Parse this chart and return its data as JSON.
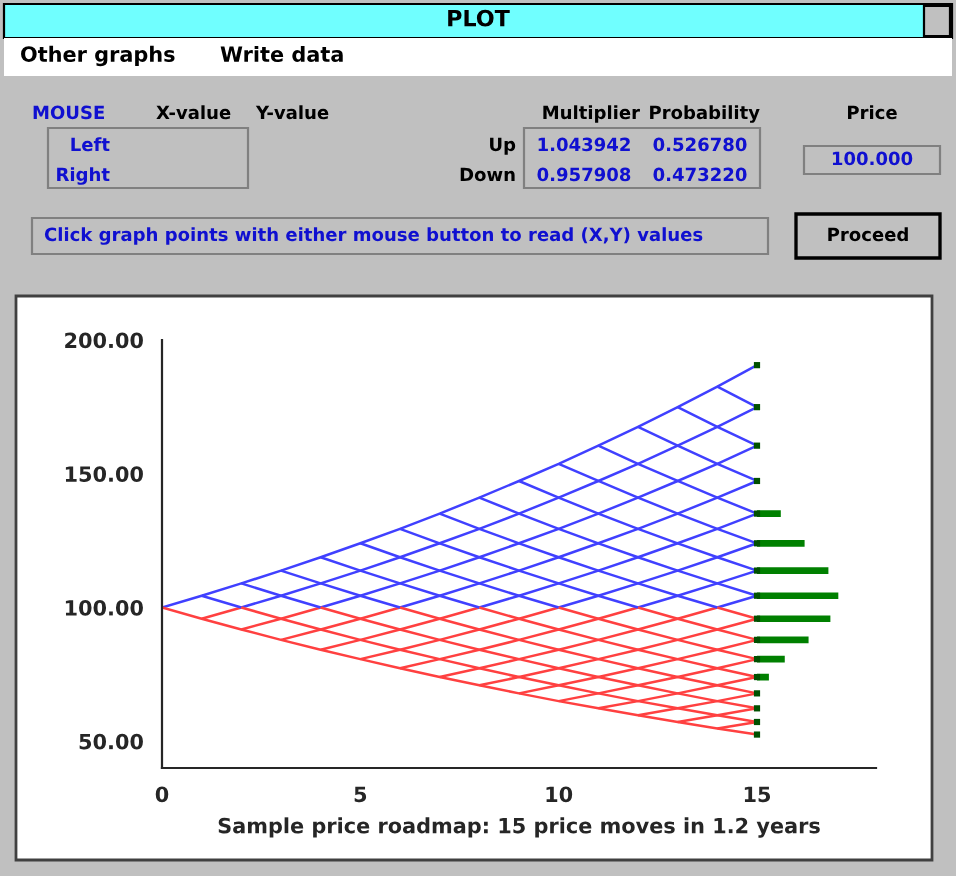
{
  "chart_data": {
    "type": "line",
    "title": "PLOT",
    "xlabel": "Sample price roadmap: 15 price moves in 1.2 years",
    "annotations": [
      "Other graphs",
      "Write data",
      "MOUSE",
      "X-value",
      "Y-value",
      "Left",
      "Right",
      "Multiplier",
      "Probability",
      "Up",
      "Down",
      "1.043942",
      "0.526780",
      "0.957908",
      "0.473220",
      "Price",
      "100.000",
      "Click graph points with either mouse button to read (X,Y) values",
      "Proceed"
    ],
    "xlim": [
      0,
      18
    ],
    "xticks": [
      0,
      5,
      10,
      15
    ],
    "ylim": [
      40,
      200
    ],
    "yticks": [
      {
        "value": 50,
        "label": "50.00"
      },
      {
        "value": 100,
        "label": "100.00"
      },
      {
        "value": 150,
        "label": "150.00"
      },
      {
        "value": 200,
        "label": "200.00"
      }
    ],
    "grid": false,
    "legend": false,
    "series": [
      {
        "color": "#4040ff",
        "x": [
          0,
          1,
          2,
          3,
          4,
          5,
          6,
          7,
          8,
          9,
          10,
          11,
          12,
          13,
          14,
          15
        ],
        "values": [
          100.0,
          104.4,
          109.0,
          113.8,
          118.8,
          124.0,
          129.4,
          135.1,
          141.1,
          147.3,
          153.7,
          160.5,
          167.5,
          174.9,
          182.6,
          190.6
        ]
      },
      {
        "color": "#ff4040",
        "x": [
          1,
          2
        ],
        "values": [
          95.8,
          100.0
        ]
      },
      {
        "color": "#4040ff",
        "x": [
          2,
          3,
          4,
          5,
          6,
          7,
          8,
          9,
          10,
          11,
          12,
          13,
          14,
          15
        ],
        "values": [
          100.0,
          104.4,
          109.0,
          113.8,
          118.8,
          124.0,
          129.4,
          135.1,
          141.1,
          147.3,
          153.7,
          160.5,
          167.5,
          174.9
        ]
      },
      {
        "color": "#ff4040",
        "x": [
          2,
          3,
          4
        ],
        "values": [
          91.8,
          95.8,
          100.0
        ]
      },
      {
        "color": "#4040ff",
        "x": [
          4,
          5,
          6,
          7,
          8,
          9,
          10,
          11,
          12,
          13,
          14,
          15
        ],
        "values": [
          100.0,
          104.4,
          109.0,
          113.8,
          118.8,
          124.0,
          129.4,
          135.1,
          141.1,
          147.3,
          153.7,
          160.5
        ]
      },
      {
        "color": "#ff4040",
        "x": [
          3,
          4,
          5,
          6
        ],
        "values": [
          87.9,
          91.8,
          95.8,
          100.0
        ]
      },
      {
        "color": "#4040ff",
        "x": [
          6,
          7,
          8,
          9,
          10,
          11,
          12,
          13,
          14,
          15
        ],
        "values": [
          100.0,
          104.4,
          109.0,
          113.8,
          118.8,
          124.0,
          129.4,
          135.1,
          141.1,
          147.3
        ]
      },
      {
        "color": "#ff4040",
        "x": [
          4,
          5,
          6,
          7,
          8
        ],
        "values": [
          84.2,
          87.9,
          91.8,
          95.8,
          100.0
        ]
      },
      {
        "color": "#4040ff",
        "x": [
          8,
          9,
          10,
          11,
          12,
          13,
          14,
          15
        ],
        "values": [
          100.0,
          104.4,
          109.0,
          113.8,
          118.8,
          124.0,
          129.4,
          135.1
        ]
      },
      {
        "color": "#ff4040",
        "x": [
          5,
          6,
          7,
          8,
          9,
          10
        ],
        "values": [
          80.7,
          84.2,
          87.9,
          91.8,
          95.8,
          100.0
        ]
      },
      {
        "color": "#4040ff",
        "x": [
          10,
          11,
          12,
          13,
          14,
          15
        ],
        "values": [
          100.0,
          104.4,
          109.0,
          113.8,
          118.8,
          124.0
        ]
      },
      {
        "color": "#ff4040",
        "x": [
          6,
          7,
          8,
          9,
          10,
          11,
          12
        ],
        "values": [
          77.3,
          80.7,
          84.2,
          87.9,
          91.8,
          95.8,
          100.0
        ]
      },
      {
        "color": "#4040ff",
        "x": [
          12,
          13,
          14,
          15
        ],
        "values": [
          100.0,
          104.4,
          109.0,
          113.8
        ]
      },
      {
        "color": "#ff4040",
        "x": [
          7,
          8,
          9,
          10,
          11,
          12,
          13,
          14
        ],
        "values": [
          74.0,
          77.3,
          80.7,
          84.2,
          87.9,
          91.8,
          95.8,
          100.0
        ]
      },
      {
        "color": "#4040ff",
        "x": [
          14,
          15
        ],
        "values": [
          100.0,
          104.4
        ]
      },
      {
        "color": "#ff4040",
        "x": [
          8,
          9,
          10,
          11,
          12,
          13,
          14,
          15
        ],
        "values": [
          70.9,
          74.0,
          77.3,
          80.7,
          84.2,
          87.9,
          91.8,
          95.8
        ]
      },
      {
        "color": "#ff4040",
        "x": [
          9,
          10,
          11,
          12,
          13,
          14,
          15
        ],
        "values": [
          67.9,
          70.9,
          74.0,
          77.3,
          80.7,
          84.2,
          87.9
        ]
      },
      {
        "color": "#ff4040",
        "x": [
          10,
          11,
          12,
          13,
          14,
          15
        ],
        "values": [
          65.0,
          67.9,
          70.9,
          74.0,
          77.3,
          80.7
        ]
      },
      {
        "color": "#ff4040",
        "x": [
          11,
          12,
          13,
          14,
          15
        ],
        "values": [
          62.3,
          65.0,
          67.9,
          70.9,
          74.0
        ]
      },
      {
        "color": "#ff4040",
        "x": [
          12,
          13,
          14,
          15
        ],
        "values": [
          59.7,
          62.3,
          65.0,
          67.9
        ]
      },
      {
        "color": "#ff4040",
        "x": [
          13,
          14,
          15
        ],
        "values": [
          57.2,
          59.7,
          62.3
        ]
      },
      {
        "color": "#ff4040",
        "x": [
          14,
          15
        ],
        "values": [
          54.8,
          57.2
        ]
      },
      {
        "color": "#ff4040",
        "x": [
          0,
          1,
          2,
          3,
          4,
          5,
          6,
          7,
          8,
          9,
          10,
          11,
          12,
          13,
          14,
          15
        ],
        "values": [
          100.0,
          95.8,
          91.8,
          87.9,
          84.2,
          80.7,
          77.3,
          74.0,
          70.9,
          67.9,
          65.0,
          62.3,
          59.7,
          57.2,
          54.8,
          52.5
        ]
      },
      {
        "color": "#4040ff",
        "x": [
          1,
          2
        ],
        "values": [
          104.4,
          100.0
        ]
      },
      {
        "color": "#ff4040",
        "x": [
          2,
          3,
          4,
          5,
          6,
          7,
          8,
          9,
          10,
          11,
          12,
          13,
          14,
          15
        ],
        "values": [
          100.0,
          95.8,
          91.8,
          87.9,
          84.2,
          80.7,
          77.3,
          74.0,
          70.9,
          67.9,
          65.0,
          62.3,
          59.7,
          57.2
        ]
      },
      {
        "color": "#4040ff",
        "x": [
          2,
          3,
          4
        ],
        "values": [
          109.0,
          104.4,
          100.0
        ]
      },
      {
        "color": "#ff4040",
        "x": [
          4,
          5,
          6,
          7,
          8,
          9,
          10,
          11,
          12,
          13,
          14,
          15
        ],
        "values": [
          100.0,
          95.8,
          91.8,
          87.9,
          84.2,
          80.7,
          77.3,
          74.0,
          70.9,
          67.9,
          65.0,
          62.3
        ]
      },
      {
        "color": "#4040ff",
        "x": [
          3,
          4,
          5,
          6
        ],
        "values": [
          113.8,
          109.0,
          104.4,
          100.0
        ]
      },
      {
        "color": "#ff4040",
        "x": [
          6,
          7,
          8,
          9,
          10,
          11,
          12,
          13,
          14,
          15
        ],
        "values": [
          100.0,
          95.8,
          91.8,
          87.9,
          84.2,
          80.7,
          77.3,
          74.0,
          70.9,
          67.9
        ]
      },
      {
        "color": "#4040ff",
        "x": [
          4,
          5,
          6,
          7,
          8
        ],
        "values": [
          118.8,
          113.8,
          109.0,
          104.4,
          100.0
        ]
      },
      {
        "color": "#ff4040",
        "x": [
          8,
          9,
          10,
          11,
          12,
          13,
          14,
          15
        ],
        "values": [
          100.0,
          95.8,
          91.8,
          87.9,
          84.2,
          80.7,
          77.3,
          74.0
        ]
      },
      {
        "color": "#4040ff",
        "x": [
          5,
          6,
          7,
          8,
          9,
          10
        ],
        "values": [
          124.0,
          118.8,
          113.8,
          109.0,
          104.4,
          100.0
        ]
      },
      {
        "color": "#ff4040",
        "x": [
          10,
          11,
          12,
          13,
          14,
          15
        ],
        "values": [
          100.0,
          95.8,
          91.8,
          87.9,
          84.2,
          80.7
        ]
      },
      {
        "color": "#4040ff",
        "x": [
          6,
          7,
          8,
          9,
          10,
          11,
          12
        ],
        "values": [
          129.4,
          124.0,
          118.8,
          113.8,
          109.0,
          104.4,
          100.0
        ]
      },
      {
        "color": "#ff4040",
        "x": [
          12,
          13,
          14,
          15
        ],
        "values": [
          100.0,
          95.8,
          91.8,
          87.9
        ]
      },
      {
        "color": "#4040ff",
        "x": [
          7,
          8,
          9,
          10,
          11,
          12,
          13,
          14
        ],
        "values": [
          135.1,
          129.4,
          124.0,
          118.8,
          113.8,
          109.0,
          104.4,
          100.0
        ]
      },
      {
        "color": "#ff4040",
        "x": [
          14,
          15
        ],
        "values": [
          100.0,
          95.8
        ]
      },
      {
        "color": "#4040ff",
        "x": [
          8,
          9,
          10,
          11,
          12,
          13,
          14,
          15
        ],
        "values": [
          141.1,
          135.1,
          129.4,
          124.0,
          118.8,
          113.8,
          109.0,
          104.4
        ]
      },
      {
        "color": "#4040ff",
        "x": [
          9,
          10,
          11,
          12,
          13,
          14,
          15
        ],
        "values": [
          147.3,
          141.1,
          135.1,
          129.4,
          124.0,
          118.8,
          113.8
        ]
      },
      {
        "color": "#4040ff",
        "x": [
          10,
          11,
          12,
          13,
          14,
          15
        ],
        "values": [
          153.7,
          147.3,
          141.1,
          135.1,
          129.4,
          124.0
        ]
      },
      {
        "color": "#4040ff",
        "x": [
          11,
          12,
          13,
          14,
          15
        ],
        "values": [
          160.5,
          153.7,
          147.3,
          141.1,
          135.1
        ]
      },
      {
        "color": "#4040ff",
        "x": [
          12,
          13,
          14,
          15
        ],
        "values": [
          167.5,
          160.5,
          153.7,
          147.3
        ]
      },
      {
        "color": "#4040ff",
        "x": [
          13,
          14,
          15
        ],
        "values": [
          174.9,
          167.5,
          160.5
        ]
      },
      {
        "color": "#4040ff",
        "x": [
          14,
          15
        ],
        "values": [
          182.6,
          174.9
        ]
      },
      {
        "color": "#008000",
        "x": [
          15,
          15.6,
          null,
          15,
          16.2,
          null,
          15,
          16.8,
          null,
          15,
          17.05,
          null,
          15,
          16.85,
          null,
          15,
          16.3,
          null,
          15,
          15.7,
          null,
          15,
          15.3
        ],
        "values": [
          135.1,
          135.1,
          null,
          124.0,
          124.0,
          null,
          113.8,
          113.8,
          null,
          104.4,
          104.4,
          null,
          95.8,
          95.8,
          null,
          87.9,
          87.9,
          null,
          80.7,
          80.7,
          null,
          74.0,
          74.0
        ]
      },
      {
        "type": "scatter",
        "marker": "square",
        "color": "#005000",
        "x": [
          15,
          15,
          15,
          15,
          15,
          15,
          15,
          15,
          15,
          15,
          15,
          15,
          15,
          15,
          15,
          15
        ],
        "values": [
          190.6,
          174.9,
          160.5,
          147.3,
          135.1,
          124.0,
          113.8,
          104.4,
          95.8,
          87.9,
          80.7,
          74.0,
          67.9,
          62.3,
          57.2,
          52.5
        ]
      }
    ]
  }
}
